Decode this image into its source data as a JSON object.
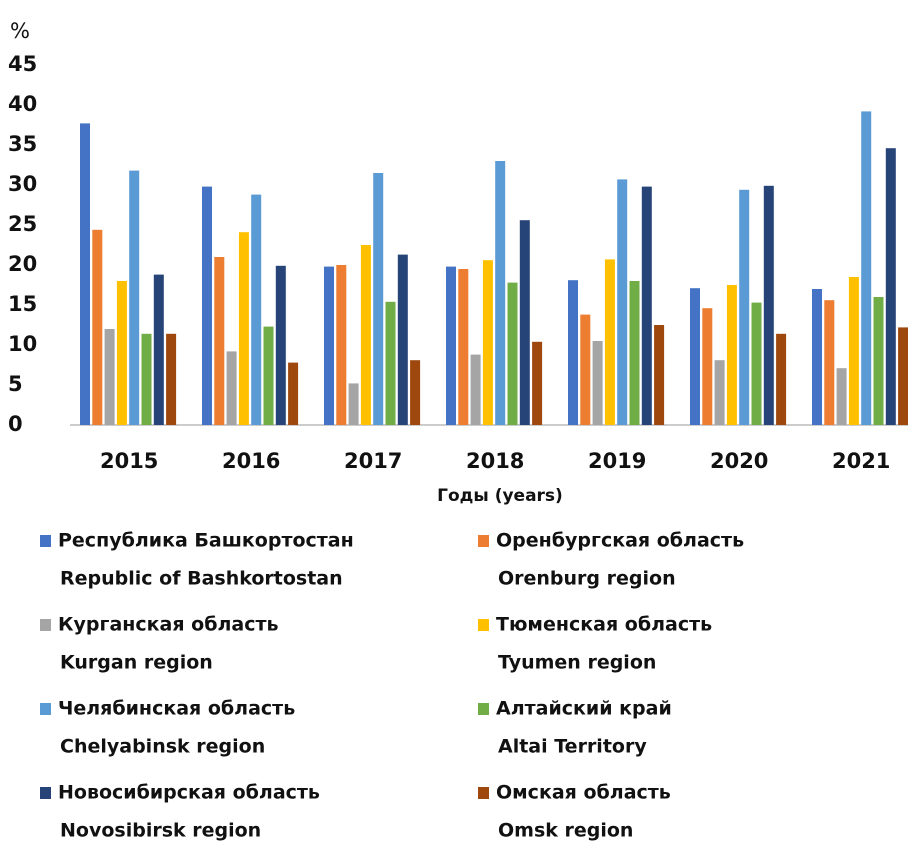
{
  "chart_data": {
    "type": "bar",
    "y_unit": "%",
    "x_label": "Годы (years)",
    "categories": [
      "2015",
      "2016",
      "2017",
      "2018",
      "2019",
      "2020",
      "2021"
    ],
    "ylim": [
      0,
      45
    ],
    "yticks": [
      0,
      5,
      10,
      15,
      20,
      25,
      30,
      35,
      40,
      45
    ],
    "grid": false,
    "series": [
      {
        "name": "Республика Башкортостан",
        "name_en": "Republic of Bashkortostan",
        "color": "#4472c4",
        "values": [
          37.7,
          29.8,
          19.8,
          19.8,
          18.1,
          17.1,
          17.0
        ]
      },
      {
        "name": "Оренбургская область",
        "name_en": "Orenburg region",
        "color": "#ed7d31",
        "values": [
          24.4,
          21.0,
          20.0,
          19.5,
          13.8,
          14.6,
          15.6
        ]
      },
      {
        "name": "Курганская область",
        "name_en": "Kurgan region",
        "color": "#a5a5a5",
        "values": [
          12.0,
          9.2,
          5.2,
          8.8,
          10.5,
          8.1,
          7.1
        ]
      },
      {
        "name": "Тюменская область",
        "name_en": "Tyumen region",
        "color": "#ffc000",
        "values": [
          18.0,
          24.1,
          22.5,
          20.6,
          20.7,
          17.5,
          18.5
        ]
      },
      {
        "name": "Челябинская область",
        "name_en": "Chelyabinsk region",
        "color": "#5b9bd5",
        "values": [
          31.8,
          28.8,
          31.5,
          33.0,
          30.7,
          29.4,
          39.2
        ]
      },
      {
        "name": "Алтайский край",
        "name_en": "Altai Territory",
        "color": "#70ad47",
        "values": [
          11.4,
          12.3,
          15.4,
          17.8,
          18.0,
          15.3,
          16.0
        ]
      },
      {
        "name": "Новосибирская область",
        "name_en": "Novosibirsk region",
        "color": "#264478",
        "values": [
          18.8,
          19.9,
          21.3,
          25.6,
          29.8,
          29.9,
          34.6
        ]
      },
      {
        "name": "Омская область",
        "name_en": "Omsk region",
        "color": "#9e480e",
        "values": [
          11.4,
          7.8,
          8.1,
          10.4,
          12.5,
          11.4,
          12.2
        ]
      }
    ]
  }
}
